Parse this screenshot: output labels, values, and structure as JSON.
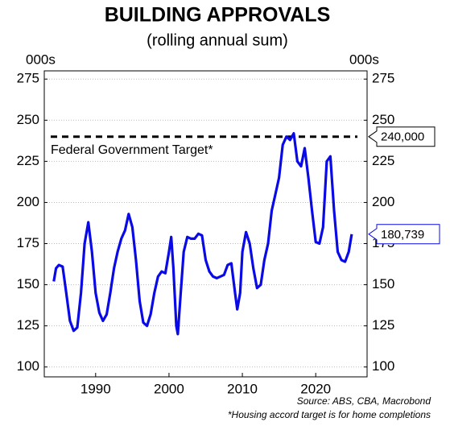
{
  "chart_data": {
    "type": "line",
    "title": "BUILDING APPROVALS",
    "subtitle": "(rolling annual sum)",
    "y_unit_left": "000s",
    "y_unit_right": "000s",
    "x": [
      1984.3,
      1984.6,
      1985,
      1985.5,
      1986,
      1986.5,
      1987,
      1987.5,
      1988,
      1988.5,
      1989,
      1989.5,
      1990,
      1990.5,
      1991,
      1991.5,
      1992,
      1992.5,
      1993,
      1993.5,
      1994,
      1994.5,
      1995,
      1995.5,
      1996,
      1996.5,
      1997,
      1997.5,
      1998,
      1998.5,
      1999,
      1999.5,
      2000,
      2000.3,
      2000.6,
      2001,
      2001.2,
      2001.6,
      2002,
      2002.5,
      2003,
      2003.5,
      2004,
      2004.5,
      2005,
      2005.5,
      2006,
      2006.5,
      2007,
      2007.5,
      2008,
      2008.5,
      2009,
      2009.3,
      2009.7,
      2010,
      2010.5,
      2011,
      2011.5,
      2012,
      2012.5,
      2013,
      2013.5,
      2014,
      2014.5,
      2015,
      2015.5,
      2016,
      2016.5,
      2017,
      2017.5,
      2018,
      2018.5,
      2019,
      2019.5,
      2020,
      2020.5,
      2021,
      2021.5,
      2022,
      2022.5,
      2023,
      2023.5,
      2024,
      2024.5,
      2024.9
    ],
    "series": [
      {
        "name": "Building approvals",
        "color": "#0a0ae6",
        "values": [
          152,
          160,
          162,
          161,
          145,
          128,
          122,
          124,
          145,
          175,
          188,
          170,
          145,
          133,
          128,
          132,
          145,
          160,
          170,
          178,
          183,
          193,
          185,
          165,
          140,
          127,
          125,
          132,
          145,
          155,
          158,
          157,
          170,
          179,
          160,
          125,
          120,
          145,
          170,
          179,
          178,
          178,
          181,
          180,
          165,
          158,
          155,
          154,
          155,
          156,
          162,
          163,
          145,
          135,
          145,
          170,
          182,
          175,
          160,
          148,
          150,
          165,
          175,
          195,
          205,
          215,
          235,
          240,
          238,
          242,
          225,
          222,
          233,
          215,
          195,
          176,
          175,
          185,
          225,
          228,
          195,
          170,
          165,
          164,
          170,
          180.739
        ]
      }
    ],
    "last_label": "180,739",
    "target": {
      "value": 240,
      "label": "240,000",
      "text": "Federal Government Target*"
    },
    "xlim": [
      1983,
      2027
    ],
    "xticks": [
      1990,
      2000,
      2010,
      2020
    ],
    "ylim": [
      94,
      280
    ],
    "yticks": [
      100,
      125,
      150,
      175,
      200,
      225,
      250,
      275
    ],
    "grid": true,
    "source": "Source: ABS, CBA, Macrobond",
    "note": "*Housing accord target is for home completions"
  }
}
